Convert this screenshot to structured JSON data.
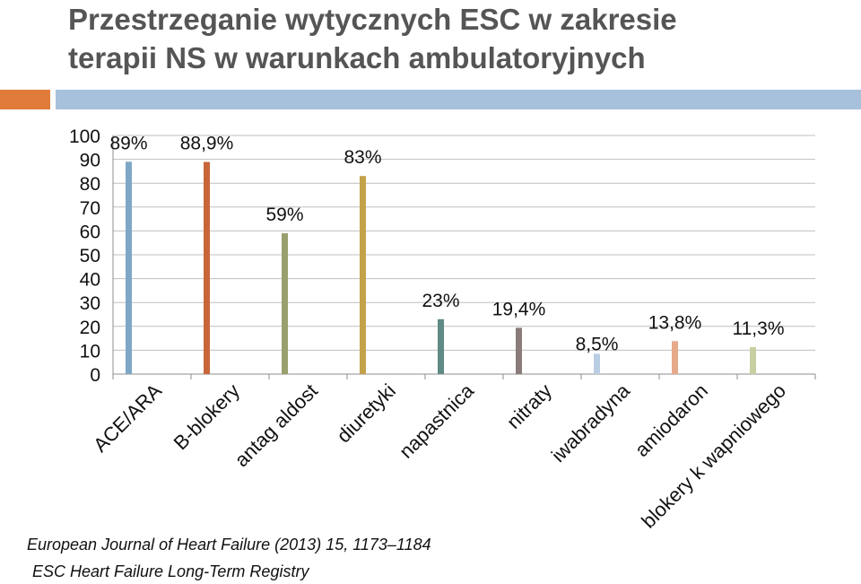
{
  "title": {
    "line1": "Przestrzeganie wytycznych ESC w zakresie",
    "line2": "terapii NS w warunkach ambulatoryjnych"
  },
  "colors": {
    "title": "#555555",
    "accent_orange": "#e07b39",
    "accent_blue": "#a7c1dc",
    "grid": "#bfbfbf"
  },
  "source": {
    "line1": "European Journal of Heart Failure (2013) 15, 1173–1184",
    "line2": "ESC Heart Failure Long-Term Registry"
  },
  "chart_data": {
    "type": "bar",
    "title": "",
    "xlabel": "",
    "ylabel": "",
    "ylim": [
      0,
      100
    ],
    "yticks": [
      0,
      10,
      20,
      30,
      40,
      50,
      60,
      70,
      80,
      90,
      100
    ],
    "grid": true,
    "legend": "none",
    "categories": [
      "ACE/ARA",
      "B-blokery",
      "antag aldost",
      "diuretyki",
      "napastnica",
      "nitraty",
      "iwabradyna",
      "amiodaron",
      "blokery k wapniowego"
    ],
    "values": [
      89,
      88.9,
      59,
      83,
      23,
      19.4,
      8.5,
      13.8,
      11.3
    ],
    "data_labels": [
      "89%",
      "88,9%",
      "59%",
      "83%",
      "23%",
      "19,4%",
      "8,5%",
      "13,8%",
      "11,3%"
    ],
    "bar_colors": [
      "#7ea7c6",
      "#c8663a",
      "#9a9f6e",
      "#c4a24a",
      "#5f8a85",
      "#8a7c7a",
      "#b9cde3",
      "#e6a98a",
      "#c8cfa2"
    ]
  }
}
